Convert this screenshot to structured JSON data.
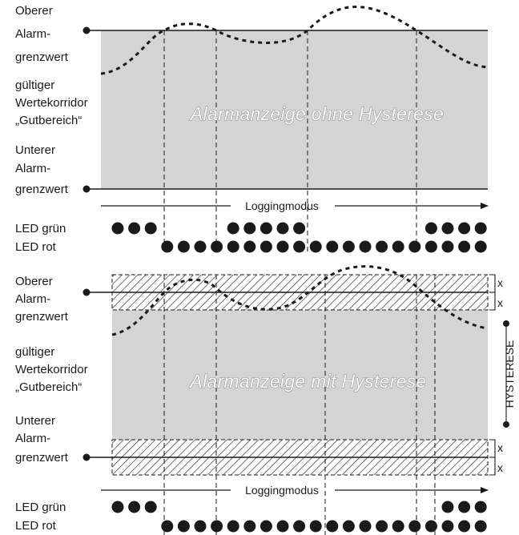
{
  "top_panel": {
    "upper_label": [
      "Oberer",
      "Alarm-",
      "grenzwert"
    ],
    "corridor_label": [
      "gültiger",
      "Wertekorridor",
      "„Gutbereich“"
    ],
    "lower_label": [
      "Unterer",
      "Alarm-",
      "grenzwert"
    ],
    "title": "Alarmanzeige ohne Hysterese",
    "logging": "Loggingmodus",
    "led_green_label": "LED grün",
    "led_red_label": "LED rot",
    "led_green": [
      1,
      1,
      1,
      0,
      0,
      0,
      0,
      1,
      1,
      1,
      1,
      1,
      0,
      0,
      0,
      0,
      0,
      0,
      0,
      1,
      1,
      1,
      1
    ],
    "led_red": [
      0,
      0,
      0,
      1,
      1,
      1,
      1,
      1,
      1,
      1,
      1,
      1,
      1,
      1,
      1,
      1,
      1,
      1,
      1,
      1,
      1,
      1,
      1
    ]
  },
  "bottom_panel": {
    "upper_label": [
      "Oberer",
      "Alarm-",
      "grenzwert"
    ],
    "corridor_label": [
      "gültiger",
      "Wertekorridor",
      "„Gutbereich“"
    ],
    "lower_label": [
      "Unterer",
      "Alarm-",
      "grenzwert"
    ],
    "title": "Alarmanzeige mit Hysterese",
    "logging": "Loggingmodus",
    "led_green_label": "LED grün",
    "led_red_label": "LED rot",
    "hysteresis_label": "HYSTERESE",
    "x_mark": "x",
    "led_green": [
      1,
      1,
      1,
      0,
      0,
      0,
      0,
      0,
      0,
      0,
      0,
      0,
      0,
      0,
      0,
      0,
      0,
      0,
      0,
      0,
      1,
      1,
      1
    ],
    "led_red": [
      0,
      0,
      0,
      1,
      1,
      1,
      1,
      1,
      1,
      1,
      1,
      1,
      1,
      1,
      1,
      1,
      1,
      1,
      1,
      1,
      1,
      1,
      1
    ]
  },
  "colors": {
    "corridor_fill": "#d4d4d4",
    "ink": "#1a1a1a"
  }
}
